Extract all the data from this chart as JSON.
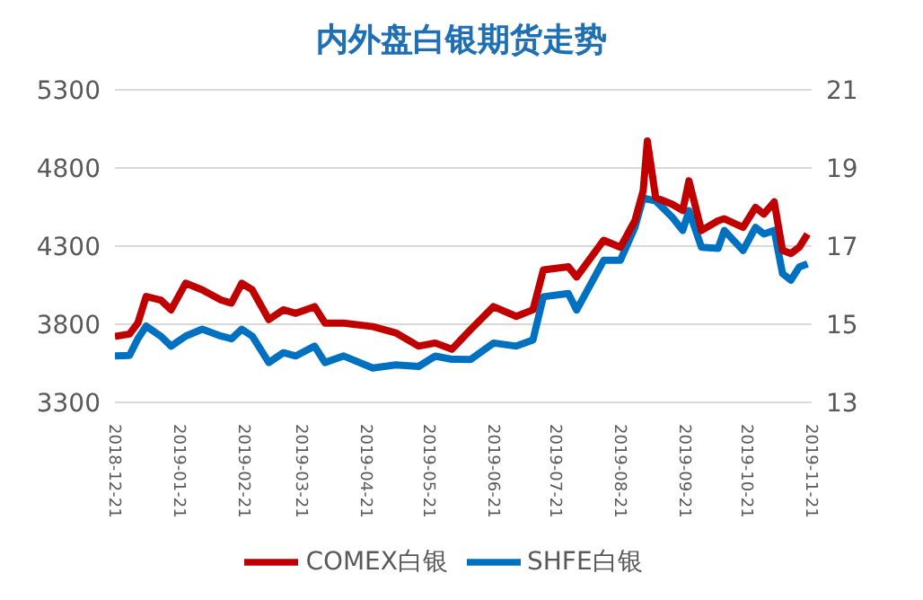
{
  "chart_data": {
    "type": "line",
    "title": "内外盘白银期货走势",
    "x": [
      "2018-12-21",
      "2018-12-28",
      "2019-01-01",
      "2019-01-05",
      "2019-01-12",
      "2019-01-17",
      "2019-01-24",
      "2019-02-01",
      "2019-02-10",
      "2019-02-15",
      "2019-02-20",
      "2019-02-25",
      "2019-03-05",
      "2019-03-12",
      "2019-03-18",
      "2019-03-27",
      "2019-04-01",
      "2019-04-10",
      "2019-04-24",
      "2019-05-05",
      "2019-05-16",
      "2019-05-24",
      "2019-06-01",
      "2019-06-10",
      "2019-06-21",
      "2019-07-02",
      "2019-07-10",
      "2019-07-15",
      "2019-07-27",
      "2019-07-31",
      "2019-08-13",
      "2019-08-21",
      "2019-08-28",
      "2019-09-01",
      "2019-09-03",
      "2019-09-07",
      "2019-09-15",
      "2019-09-20",
      "2019-09-23",
      "2019-09-29",
      "2019-10-07",
      "2019-10-10",
      "2019-10-19",
      "2019-10-25",
      "2019-10-29",
      "2019-11-03",
      "2019-11-07",
      "2019-11-11",
      "2019-11-15",
      "2019-11-19"
    ],
    "series": [
      {
        "name": "SHFE白银",
        "color": "#0070c0",
        "values": [
          3597,
          3600,
          3707,
          3788,
          3724,
          3660,
          3724,
          3768,
          3724,
          3707,
          3768,
          3724,
          3555,
          3618,
          3597,
          3660,
          3555,
          3597,
          3520,
          3540,
          3530,
          3596,
          3576,
          3575,
          3680,
          3660,
          3700,
          3976,
          3997,
          3891,
          4209,
          4209,
          4420,
          4610,
          4600,
          4590,
          4484,
          4400,
          4526,
          4293,
          4285,
          4400,
          4272,
          4420,
          4378,
          4400,
          4124,
          4082,
          4166,
          4187
        ]
      },
      {
        "name": "COMEX白银",
        "color": "#c00000",
        "axis": "y2",
        "values": [
          14.69,
          14.75,
          15.03,
          15.71,
          15.62,
          15.37,
          16.05,
          15.88,
          15.62,
          15.54,
          16.05,
          15.88,
          15.12,
          15.37,
          15.28,
          15.45,
          15.03,
          15.03,
          14.94,
          14.78,
          14.44,
          14.52,
          14.36,
          14.86,
          15.45,
          15.2,
          15.37,
          16.39,
          16.47,
          16.21,
          17.15,
          16.97,
          17.65,
          18.42,
          19.69,
          18.24,
          18.07,
          17.91,
          18.67,
          17.4,
          17.65,
          17.7,
          17.48,
          17.99,
          17.82,
          18.13,
          16.89,
          16.81,
          16.97,
          17.31
        ]
      }
    ],
    "xlim": [
      "2018-12-21",
      "2019-11-21"
    ],
    "xticks": [
      "2018-12-21",
      "2019-01-21",
      "2019-02-21",
      "2019-03-21",
      "2019-04-21",
      "2019-05-21",
      "2019-06-21",
      "2019-07-21",
      "2019-08-21",
      "2019-09-21",
      "2019-10-21",
      "2019-11-21"
    ],
    "ylim": [
      3300,
      5300
    ],
    "yticks": [
      3300,
      3800,
      4300,
      4800,
      5300
    ],
    "y2lim": [
      13,
      21
    ],
    "y2ticks": [
      13,
      15,
      17,
      19,
      21
    ],
    "grid": "y",
    "legend": "bottom",
    "marker": "none",
    "line_style": "solid"
  }
}
